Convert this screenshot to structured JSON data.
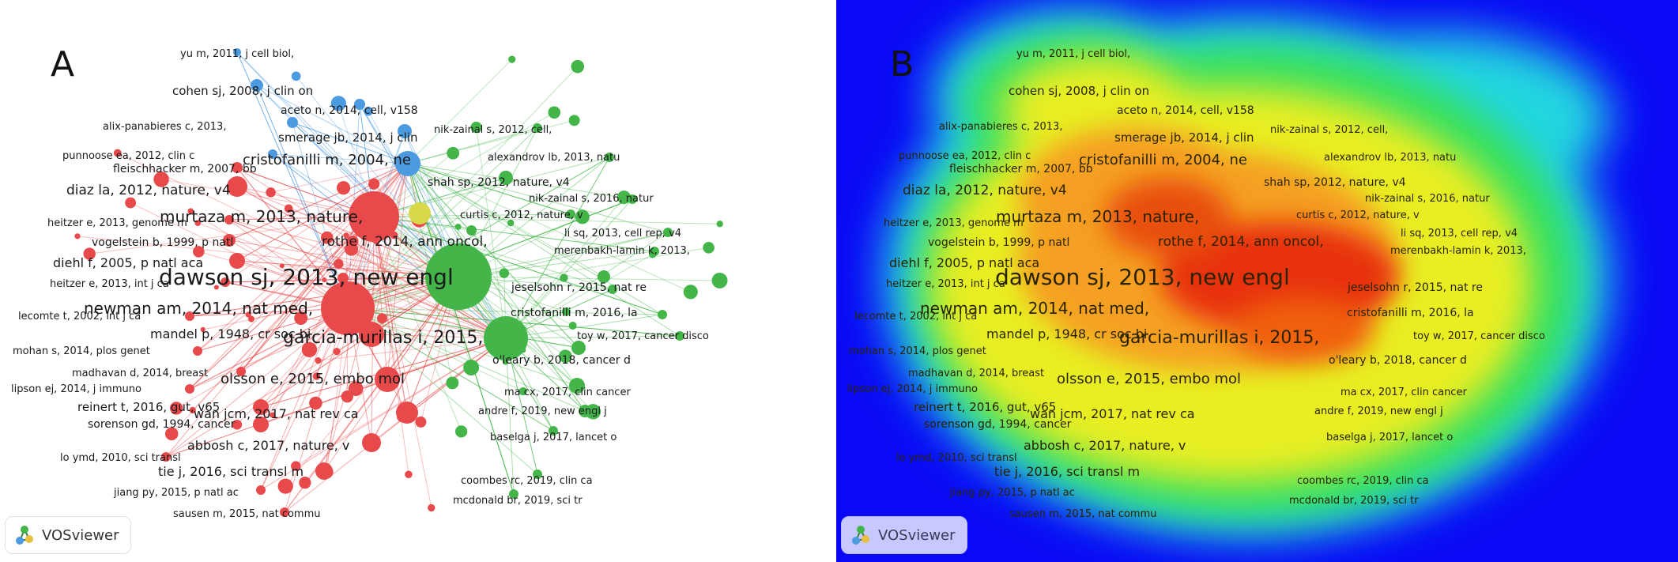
{
  "panels": [
    {
      "letter": "A",
      "style": "network"
    },
    {
      "letter": "B",
      "style": "density"
    }
  ],
  "logo_text": "VOSviewer",
  "cluster_colors": {
    "red": "#e8494b",
    "green": "#43b549",
    "blue": "#4c9ae0",
    "yellow": "#d8d84a"
  },
  "nodes": [
    {
      "label": "yu m, 2011, j cell biol,",
      "cluster": "blue",
      "weight": 1
    },
    {
      "label": "cohen sj, 2008, j clin on",
      "cluster": "blue",
      "weight": 2
    },
    {
      "label": "aceto n, 2014, cell, v158",
      "cluster": "blue",
      "weight": 2
    },
    {
      "label": "alix-panabieres c, 2013,",
      "cluster": "blue",
      "weight": 1
    },
    {
      "label": "nik-zainal s, 2012, cell,",
      "cluster": "green",
      "weight": 1
    },
    {
      "label": "smerage jb, 2014, j clin",
      "cluster": "blue",
      "weight": 2
    },
    {
      "label": "alexandrov lb, 2013, natu",
      "cluster": "green",
      "weight": 1
    },
    {
      "label": "punnoose ea, 2012, clin c",
      "cluster": "blue",
      "weight": 1
    },
    {
      "label": "fleischhacker m, 2007, bb",
      "cluster": "red",
      "weight": 2
    },
    {
      "label": "cristofanilli m, 2004, ne",
      "cluster": "blue",
      "weight": 4
    },
    {
      "label": "shah sp, 2012, nature, v4",
      "cluster": "green",
      "weight": 2
    },
    {
      "label": "nik-zainal s, 2016, natur",
      "cluster": "green",
      "weight": 1
    },
    {
      "label": "diaz la, 2012, nature, v4",
      "cluster": "red",
      "weight": 4
    },
    {
      "label": "curtis c, 2012, nature, v",
      "cluster": "green",
      "weight": 1
    },
    {
      "label": "heitzer e, 2013, genome m",
      "cluster": "red",
      "weight": 1
    },
    {
      "label": "murtaza m, 2013, nature,",
      "cluster": "red",
      "weight": 6
    },
    {
      "label": "li sq, 2013, cell rep, v4",
      "cluster": "green",
      "weight": 1
    },
    {
      "label": "vogelstein b, 1999, p natl",
      "cluster": "red",
      "weight": 2
    },
    {
      "label": "rothe f, 2014, ann oncol,",
      "cluster": "yellow",
      "weight": 3
    },
    {
      "label": "merenbakh-lamin k, 2013,",
      "cluster": "green",
      "weight": 1
    },
    {
      "label": "diehl f, 2005, p natl aca",
      "cluster": "red",
      "weight": 3
    },
    {
      "label": "dawson sj, 2013, new engl",
      "cluster": "green",
      "weight": 10
    },
    {
      "label": "heitzer e, 2013, int j ca",
      "cluster": "red",
      "weight": 1
    },
    {
      "label": "jeselsohn r, 2015, nat re",
      "cluster": "green",
      "weight": 1
    },
    {
      "label": "newman am, 2014, nat med,",
      "cluster": "red",
      "weight": 6
    },
    {
      "label": "lecomte t, 2002, int j ca",
      "cluster": "red",
      "weight": 1
    },
    {
      "label": "cristofanilli m, 2016, la",
      "cluster": "green",
      "weight": 1
    },
    {
      "label": "mandel p, 1948, cr soc bi",
      "cluster": "red",
      "weight": 3
    },
    {
      "label": "garcia-murillas i, 2015,",
      "cluster": "green",
      "weight": 7
    },
    {
      "label": "toy w, 2017, cancer disco",
      "cluster": "green",
      "weight": 1
    },
    {
      "label": "mohan s, 2014, plos genet",
      "cluster": "red",
      "weight": 1
    },
    {
      "label": "o'leary b, 2018, cancer d",
      "cluster": "green",
      "weight": 2
    },
    {
      "label": "madhavan d, 2014, breast",
      "cluster": "red",
      "weight": 1
    },
    {
      "label": "olsson e, 2015, embo mol",
      "cluster": "red",
      "weight": 4
    },
    {
      "label": "lipson ej, 2014, j immuno",
      "cluster": "red",
      "weight": 1
    },
    {
      "label": "ma cx, 2017, clin cancer",
      "cluster": "green",
      "weight": 1
    },
    {
      "label": "reinert t, 2016, gut, v65",
      "cluster": "red",
      "weight": 2
    },
    {
      "label": "wan jcm, 2017, nat rev ca",
      "cluster": "red",
      "weight": 3
    },
    {
      "label": "andre f, 2019, new engl j",
      "cluster": "green",
      "weight": 2
    },
    {
      "label": "sorenson gd, 1994, cancer",
      "cluster": "red",
      "weight": 2
    },
    {
      "label": "baselga j, 2017, lancet o",
      "cluster": "green",
      "weight": 1
    },
    {
      "label": "abbosh c, 2017, nature, v",
      "cluster": "red",
      "weight": 3
    },
    {
      "label": "lo ymd, 2010, sci transl",
      "cluster": "red",
      "weight": 1
    },
    {
      "label": "tie j, 2016, sci transl m",
      "cluster": "red",
      "weight": 3
    },
    {
      "label": "coombes rc, 2019, clin ca",
      "cluster": "green",
      "weight": 1
    },
    {
      "label": "jiang py, 2015, p natl ac",
      "cluster": "red",
      "weight": 1
    },
    {
      "label": "mcdonald br, 2019, sci tr",
      "cluster": "green",
      "weight": 1
    },
    {
      "label": "sausen m, 2015, nat commu",
      "cluster": "red",
      "weight": 1
    }
  ]
}
